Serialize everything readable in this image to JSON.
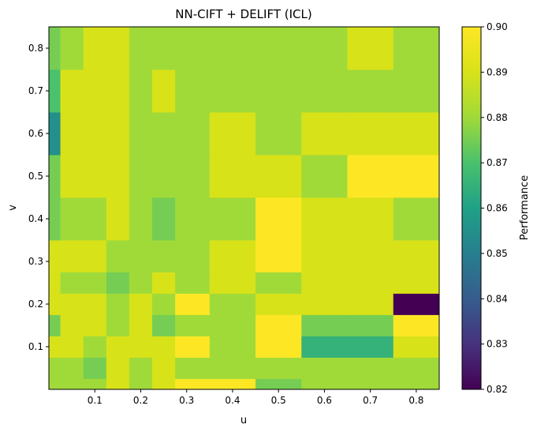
{
  "chart_data": {
    "type": "heatmap",
    "title": "NN-CIFT + DELIFT (ICL)",
    "xlabel": "u",
    "ylabel": "v",
    "colorbar_label": "Performance",
    "colormap": "viridis",
    "vmin": 0.82,
    "vmax": 0.9,
    "xlim": [
      0.0,
      0.85
    ],
    "ylim": [
      0.0,
      0.85
    ],
    "x_ticks": [
      "0.1",
      "0.2",
      "0.3",
      "0.4",
      "0.5",
      "0.6",
      "0.7",
      "0.8"
    ],
    "x_tick_values": [
      0.1,
      0.2,
      0.3,
      0.4,
      0.5,
      0.6,
      0.7,
      0.8
    ],
    "y_ticks": [
      "0.1",
      "0.2",
      "0.3",
      "0.4",
      "0.5",
      "0.6",
      "0.7",
      "0.8"
    ],
    "y_tick_values": [
      0.1,
      0.2,
      0.3,
      0.4,
      0.5,
      0.6,
      0.7,
      0.8
    ],
    "colorbar_ticks": [
      "0.82",
      "0.83",
      "0.84",
      "0.85",
      "0.86",
      "0.87",
      "0.88",
      "0.89",
      "0.90"
    ],
    "colorbar_tick_values": [
      0.82,
      0.83,
      0.84,
      0.85,
      0.86,
      0.87,
      0.88,
      0.89,
      0.9
    ],
    "x_edges": [
      0.0,
      0.025,
      0.075,
      0.125,
      0.175,
      0.225,
      0.275,
      0.35,
      0.45,
      0.55,
      0.65,
      0.75,
      0.85
    ],
    "y_edges": [
      0.0,
      0.025,
      0.075,
      0.125,
      0.175,
      0.225,
      0.275,
      0.35,
      0.45,
      0.55,
      0.65,
      0.75,
      0.85
    ],
    "values": [
      [
        0.88,
        0.88,
        0.88,
        0.89,
        0.88,
        0.89,
        0.9,
        0.9,
        0.875,
        0.88,
        0.88,
        0.88
      ],
      [
        0.88,
        0.88,
        0.875,
        0.89,
        0.88,
        0.89,
        0.88,
        0.88,
        0.88,
        0.88,
        0.88,
        0.88
      ],
      [
        0.89,
        0.89,
        0.88,
        0.89,
        0.89,
        0.89,
        0.9,
        0.88,
        0.9,
        0.865,
        0.865,
        0.89
      ],
      [
        0.875,
        0.89,
        0.89,
        0.88,
        0.89,
        0.875,
        0.88,
        0.88,
        0.9,
        0.875,
        0.875,
        0.9
      ],
      [
        0.89,
        0.89,
        0.89,
        0.88,
        0.89,
        0.88,
        0.9,
        0.88,
        0.89,
        0.89,
        0.89,
        0.82
      ],
      [
        0.89,
        0.88,
        0.88,
        0.875,
        0.88,
        0.89,
        0.88,
        0.89,
        0.88,
        0.89,
        0.89,
        0.89
      ],
      [
        0.89,
        0.89,
        0.89,
        0.88,
        0.88,
        0.88,
        0.88,
        0.89,
        0.9,
        0.89,
        0.89,
        0.89
      ],
      [
        0.875,
        0.88,
        0.88,
        0.89,
        0.88,
        0.875,
        0.88,
        0.88,
        0.9,
        0.89,
        0.89,
        0.88
      ],
      [
        0.875,
        0.89,
        0.89,
        0.89,
        0.88,
        0.88,
        0.88,
        0.89,
        0.89,
        0.88,
        0.9,
        0.9
      ],
      [
        0.855,
        0.89,
        0.89,
        0.89,
        0.88,
        0.88,
        0.88,
        0.89,
        0.88,
        0.89,
        0.89,
        0.89
      ],
      [
        0.87,
        0.89,
        0.89,
        0.89,
        0.88,
        0.89,
        0.88,
        0.88,
        0.88,
        0.88,
        0.88,
        0.88
      ],
      [
        0.875,
        0.88,
        0.89,
        0.89,
        0.88,
        0.88,
        0.88,
        0.88,
        0.88,
        0.88,
        0.89,
        0.88
      ]
    ]
  }
}
